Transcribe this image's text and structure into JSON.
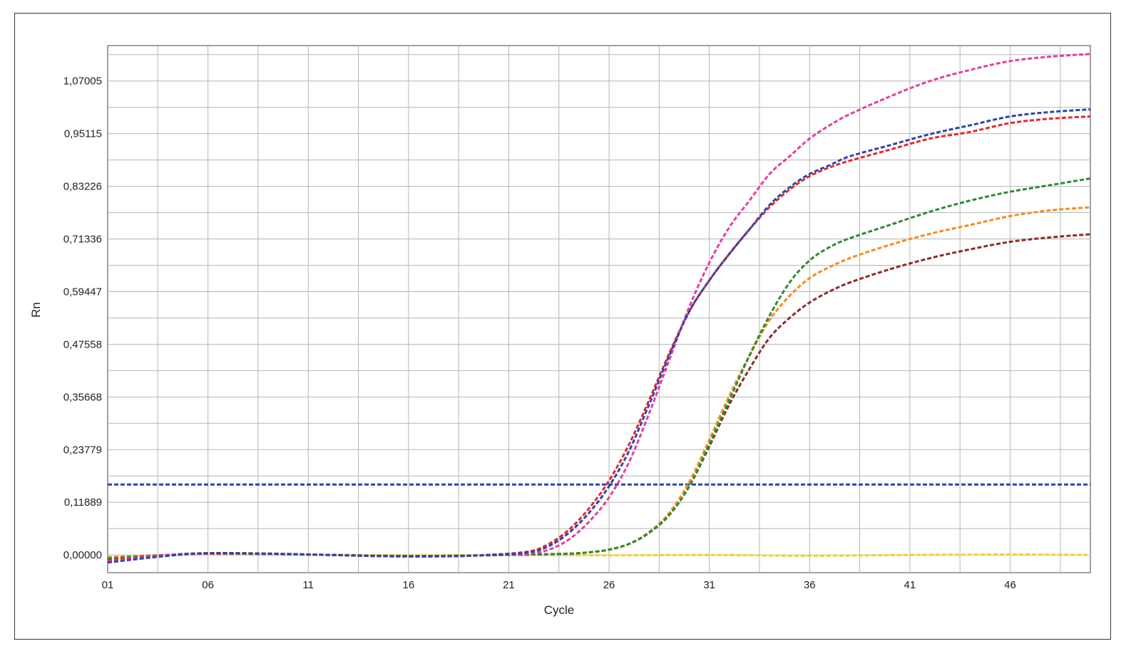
{
  "chart_data": {
    "type": "line",
    "title": "",
    "xlabel": "Cycle",
    "ylabel": "Rn",
    "xlim": [
      1,
      50
    ],
    "ylim": [
      -0.04,
      1.15
    ],
    "x_ticks": [
      1,
      6,
      11,
      16,
      21,
      26,
      31,
      36,
      41,
      46
    ],
    "x_tick_labels": [
      "01",
      "06",
      "11",
      "16",
      "21",
      "26",
      "31",
      "36",
      "41",
      "46"
    ],
    "y_ticks": [
      0,
      0.11889,
      0.23779,
      0.35668,
      0.47558,
      0.59447,
      0.71336,
      0.83226,
      0.95115,
      1.07005
    ],
    "y_tick_labels": [
      "0,00000",
      "0,11889",
      "0,23779",
      "0,35668",
      "0,47558",
      "0,59447",
      "0,71336",
      "0,83226",
      "0,95115",
      "1,07005"
    ],
    "grid": true,
    "legend": "none",
    "threshold": {
      "value": 0.159,
      "color": "#2e46a6"
    },
    "series": [
      {
        "color": "#e33fa0",
        "x": [
          1,
          4,
          6,
          9,
          12,
          15,
          18,
          20,
          22,
          23,
          24,
          25,
          26,
          27,
          28,
          29,
          30,
          31,
          32,
          33,
          34,
          35,
          36,
          37,
          38,
          40,
          42,
          44,
          46,
          48,
          50
        ],
        "y": [
          -0.015,
          0.0,
          0.004,
          0.003,
          0.0,
          -0.003,
          -0.003,
          0.0,
          0.003,
          0.012,
          0.035,
          0.075,
          0.13,
          0.21,
          0.32,
          0.44,
          0.56,
          0.66,
          0.74,
          0.8,
          0.86,
          0.9,
          0.94,
          0.97,
          0.995,
          1.035,
          1.07,
          1.095,
          1.115,
          1.125,
          1.131
        ]
      },
      {
        "color": "#2e46a6",
        "x": [
          1,
          4,
          6,
          9,
          12,
          15,
          18,
          20,
          22,
          23,
          24,
          25,
          26,
          27,
          28,
          29,
          30,
          31,
          32,
          33,
          34,
          35,
          36,
          37,
          38,
          40,
          42,
          44,
          46,
          48,
          50
        ],
        "y": [
          -0.017,
          -0.002,
          0.004,
          0.003,
          0.0,
          -0.003,
          -0.003,
          0.0,
          0.006,
          0.02,
          0.05,
          0.095,
          0.155,
          0.235,
          0.34,
          0.45,
          0.55,
          0.62,
          0.68,
          0.735,
          0.79,
          0.83,
          0.86,
          0.88,
          0.9,
          0.925,
          0.95,
          0.97,
          0.99,
          1.0,
          1.006
        ]
      },
      {
        "color": "#e3282d",
        "x": [
          1,
          4,
          6,
          9,
          12,
          15,
          18,
          20,
          22,
          23,
          24,
          25,
          26,
          27,
          28,
          29,
          30,
          31,
          32,
          33,
          34,
          35,
          36,
          37,
          38,
          40,
          42,
          44,
          46,
          48,
          50
        ],
        "y": [
          -0.012,
          0.0,
          0.003,
          0.003,
          0.0,
          -0.003,
          -0.003,
          0.0,
          0.008,
          0.025,
          0.057,
          0.105,
          0.168,
          0.25,
          0.35,
          0.455,
          0.55,
          0.62,
          0.68,
          0.735,
          0.785,
          0.825,
          0.855,
          0.875,
          0.89,
          0.915,
          0.94,
          0.955,
          0.975,
          0.985,
          0.99
        ]
      },
      {
        "color": "#2e8b2e",
        "x": [
          1,
          4,
          6,
          9,
          12,
          15,
          18,
          21,
          24,
          25,
          26,
          27,
          28,
          29,
          30,
          31,
          32,
          33,
          34,
          35,
          36,
          37,
          38,
          40,
          42,
          44,
          46,
          48,
          50
        ],
        "y": [
          -0.008,
          0.0,
          0.003,
          0.002,
          0.0,
          -0.002,
          -0.002,
          0.0,
          0.003,
          0.006,
          0.012,
          0.025,
          0.05,
          0.09,
          0.155,
          0.25,
          0.35,
          0.45,
          0.54,
          0.615,
          0.665,
          0.695,
          0.715,
          0.745,
          0.775,
          0.8,
          0.82,
          0.835,
          0.85
        ]
      },
      {
        "color": "#f58b1e",
        "x": [
          1,
          4,
          6,
          9,
          12,
          15,
          18,
          21,
          24,
          25,
          26,
          27,
          28,
          29,
          30,
          31,
          32,
          33,
          34,
          35,
          36,
          37,
          38,
          40,
          42,
          44,
          46,
          48,
          50
        ],
        "y": [
          -0.005,
          0.0,
          0.003,
          0.002,
          0.0,
          -0.002,
          -0.002,
          0.0,
          0.003,
          0.006,
          0.012,
          0.025,
          0.052,
          0.095,
          0.165,
          0.26,
          0.36,
          0.45,
          0.53,
          0.585,
          0.625,
          0.65,
          0.67,
          0.7,
          0.725,
          0.745,
          0.765,
          0.778,
          0.785
        ]
      },
      {
        "color": "#8e2a2a",
        "x": [
          1,
          4,
          6,
          9,
          12,
          15,
          18,
          21,
          24,
          25,
          26,
          27,
          28,
          29,
          30,
          31,
          32,
          33,
          34,
          35,
          36,
          37,
          38,
          40,
          42,
          44,
          46,
          48,
          50
        ],
        "y": [
          -0.007,
          0.0,
          0.003,
          0.002,
          0.0,
          -0.002,
          -0.002,
          0.0,
          0.003,
          0.006,
          0.012,
          0.025,
          0.05,
          0.09,
          0.155,
          0.245,
          0.34,
          0.42,
          0.49,
          0.535,
          0.57,
          0.595,
          0.615,
          0.645,
          0.67,
          0.69,
          0.707,
          0.717,
          0.724
        ]
      },
      {
        "color": "#f2cf2a",
        "x": [
          1,
          6,
          11,
          16,
          21,
          26,
          31,
          36,
          41,
          46,
          50
        ],
        "y": [
          -0.006,
          0.002,
          0.001,
          -0.001,
          0.0,
          -0.001,
          0.0,
          -0.002,
          0.0,
          0.001,
          0.0
        ]
      }
    ]
  }
}
